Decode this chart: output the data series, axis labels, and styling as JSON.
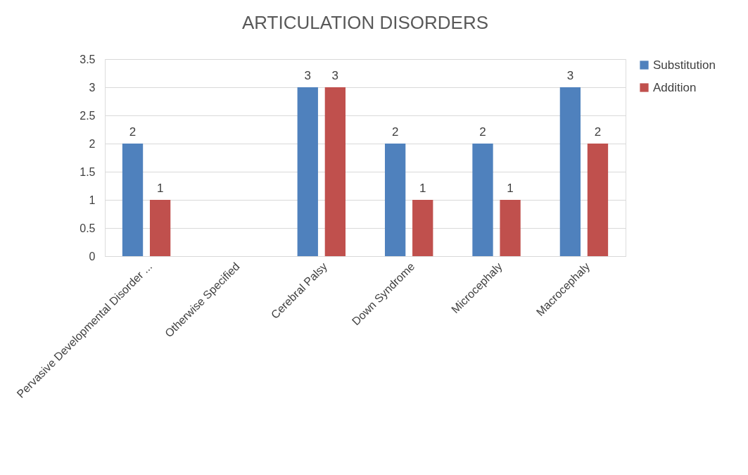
{
  "chart_data": {
    "type": "bar",
    "title": "ARTICULATION DISORDERS",
    "categories": [
      "Pervasive Developmental Disorder ...",
      "Otherwise Specified",
      "Cerebral Palsy",
      "Down Syndrome",
      "Microcephaly",
      "Macrocephaly"
    ],
    "series": [
      {
        "name": "Substitution",
        "color": "#4f81bd",
        "values": [
          2,
          null,
          3,
          2,
          2,
          3
        ]
      },
      {
        "name": "Addition",
        "color": "#c0504d",
        "values": [
          1,
          null,
          3,
          1,
          1,
          2
        ]
      }
    ],
    "ylim": [
      0,
      3.5
    ],
    "yticks": [
      0,
      0.5,
      1,
      1.5,
      2,
      2.5,
      3,
      3.5
    ],
    "grid": "y",
    "legend": "right",
    "data_labels": true
  }
}
